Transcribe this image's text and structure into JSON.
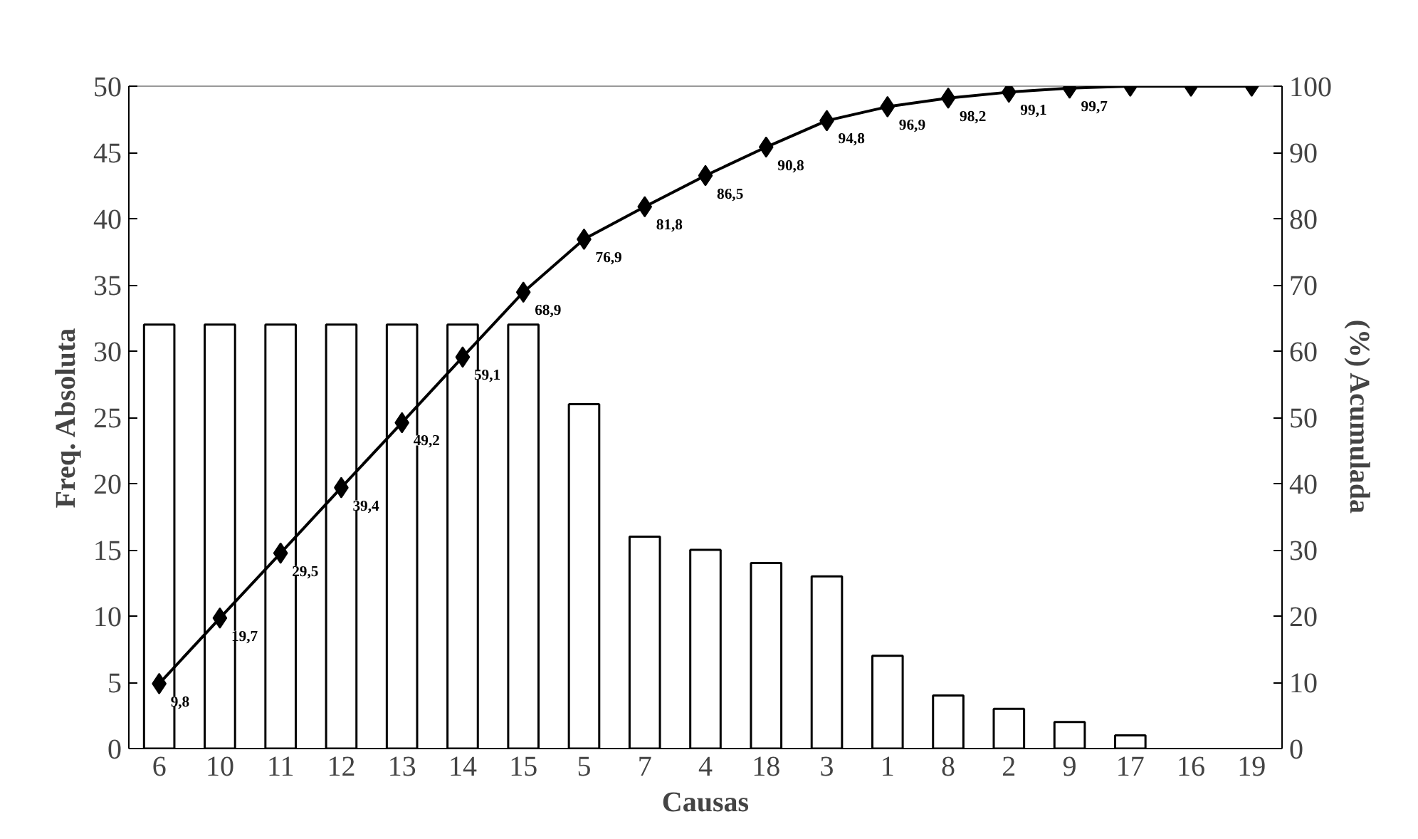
{
  "chart_data": {
    "type": "bar",
    "xlabel": "Causas",
    "ylabel": "Freq. Absoluta",
    "y2label": "(%) Acumulada",
    "categories": [
      "6",
      "10",
      "11",
      "12",
      "13",
      "14",
      "15",
      "5",
      "7",
      "4",
      "18",
      "3",
      "1",
      "8",
      "2",
      "9",
      "17",
      "16",
      "19"
    ],
    "series": [
      {
        "color": "#ffffff",
        "values": [
          32,
          32,
          32,
          32,
          32,
          32,
          32,
          26,
          16,
          15,
          14,
          13,
          7,
          4,
          3,
          2,
          1,
          0,
          0
        ]
      },
      {
        "type": "line",
        "axis": "y2",
        "color": "#000000",
        "marker": "diamond",
        "line_style": "solid",
        "values": [
          9.8,
          19.7,
          29.5,
          39.4,
          49.2,
          59.1,
          68.9,
          76.9,
          81.8,
          86.5,
          90.8,
          94.8,
          96.9,
          98.2,
          99.1,
          99.7,
          100,
          100,
          100
        ],
        "value_labels": [
          "9,8",
          "19,7",
          "29,5",
          "39,4",
          "49,2",
          "59,1",
          "68,9",
          "76,9",
          "81,8",
          "86,5",
          "90,8",
          "94,8",
          "96,9",
          "98,2",
          "99,1",
          "99,7",
          null,
          null,
          null
        ]
      }
    ],
    "ylim": [
      0,
      50
    ],
    "yticks": [
      0,
      5,
      10,
      15,
      20,
      25,
      30,
      35,
      40,
      45,
      50
    ],
    "y2lim": [
      0,
      100
    ],
    "y2ticks": [
      0,
      10,
      20,
      30,
      40,
      50,
      60,
      70,
      80,
      90,
      100
    ],
    "grid": false
  }
}
